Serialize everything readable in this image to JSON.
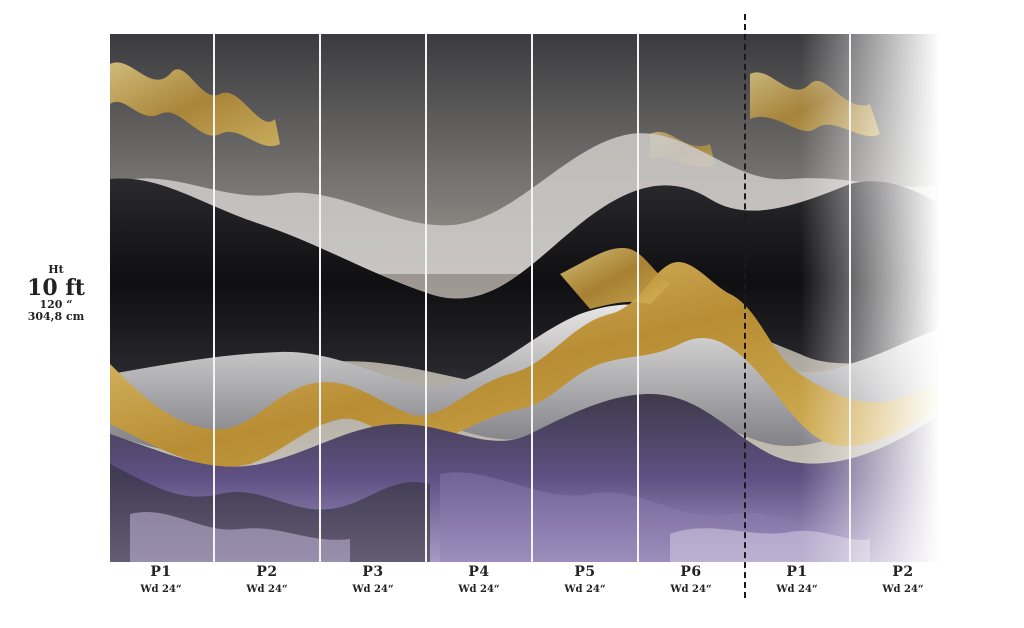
{
  "height": {
    "label": "Ht",
    "feet": "10 ft",
    "inches": "120 “",
    "cm": "304,8 cm"
  },
  "panels": [
    {
      "name": "P1",
      "width": "Wd 24“"
    },
    {
      "name": "P2",
      "width": "Wd 24“"
    },
    {
      "name": "P3",
      "width": "Wd 24“"
    },
    {
      "name": "P4",
      "width": "Wd 24“"
    },
    {
      "name": "P5",
      "width": "Wd 24“"
    },
    {
      "name": "P6",
      "width": "Wd 24“"
    },
    {
      "name": "P1",
      "width": "Wd 24“"
    },
    {
      "name": "P2",
      "width": "Wd 24“"
    }
  ],
  "colors": {
    "sky_dark": "#3c3c3e",
    "sky_light": "#cfc9bd",
    "wave_black": "#121214",
    "wave_grey": "#8a8a90",
    "gold": "#c9a54a",
    "purple": "#6a5a8c",
    "purple_light": "#b3a7cc"
  }
}
